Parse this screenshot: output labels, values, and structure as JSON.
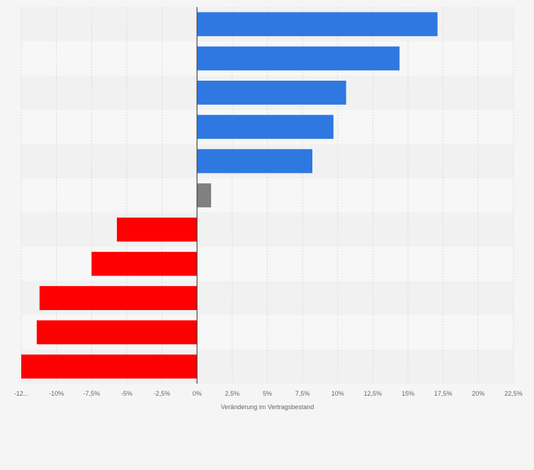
{
  "chart_data": {
    "type": "bar",
    "orientation": "horizontal",
    "xlabel": "Veränderung im Vertragsbestand",
    "xlim": [
      -12.5,
      22.5
    ],
    "grid": true,
    "x_ticks": [
      "-12...",
      "-10%",
      "-7,5%",
      "-5%",
      "-2,5%",
      "0%",
      "2,5%",
      "5%",
      "7,5%",
      "10%",
      "12,5%",
      "15%",
      "17,5%",
      "20%",
      "22,5%"
    ],
    "values": [
      17.1,
      14.4,
      10.6,
      9.7,
      8.2,
      1.0,
      -5.7,
      -7.5,
      -11.2,
      -11.4,
      -12.5
    ],
    "colors": {
      "positive": "#2f78e2",
      "neutral": "#808080",
      "negative": "#ff0000",
      "band_dark": "#f1f1f1",
      "band_light": "#f7f7f7",
      "grid": "#d9d9d9",
      "zero_line": "#444444"
    }
  }
}
